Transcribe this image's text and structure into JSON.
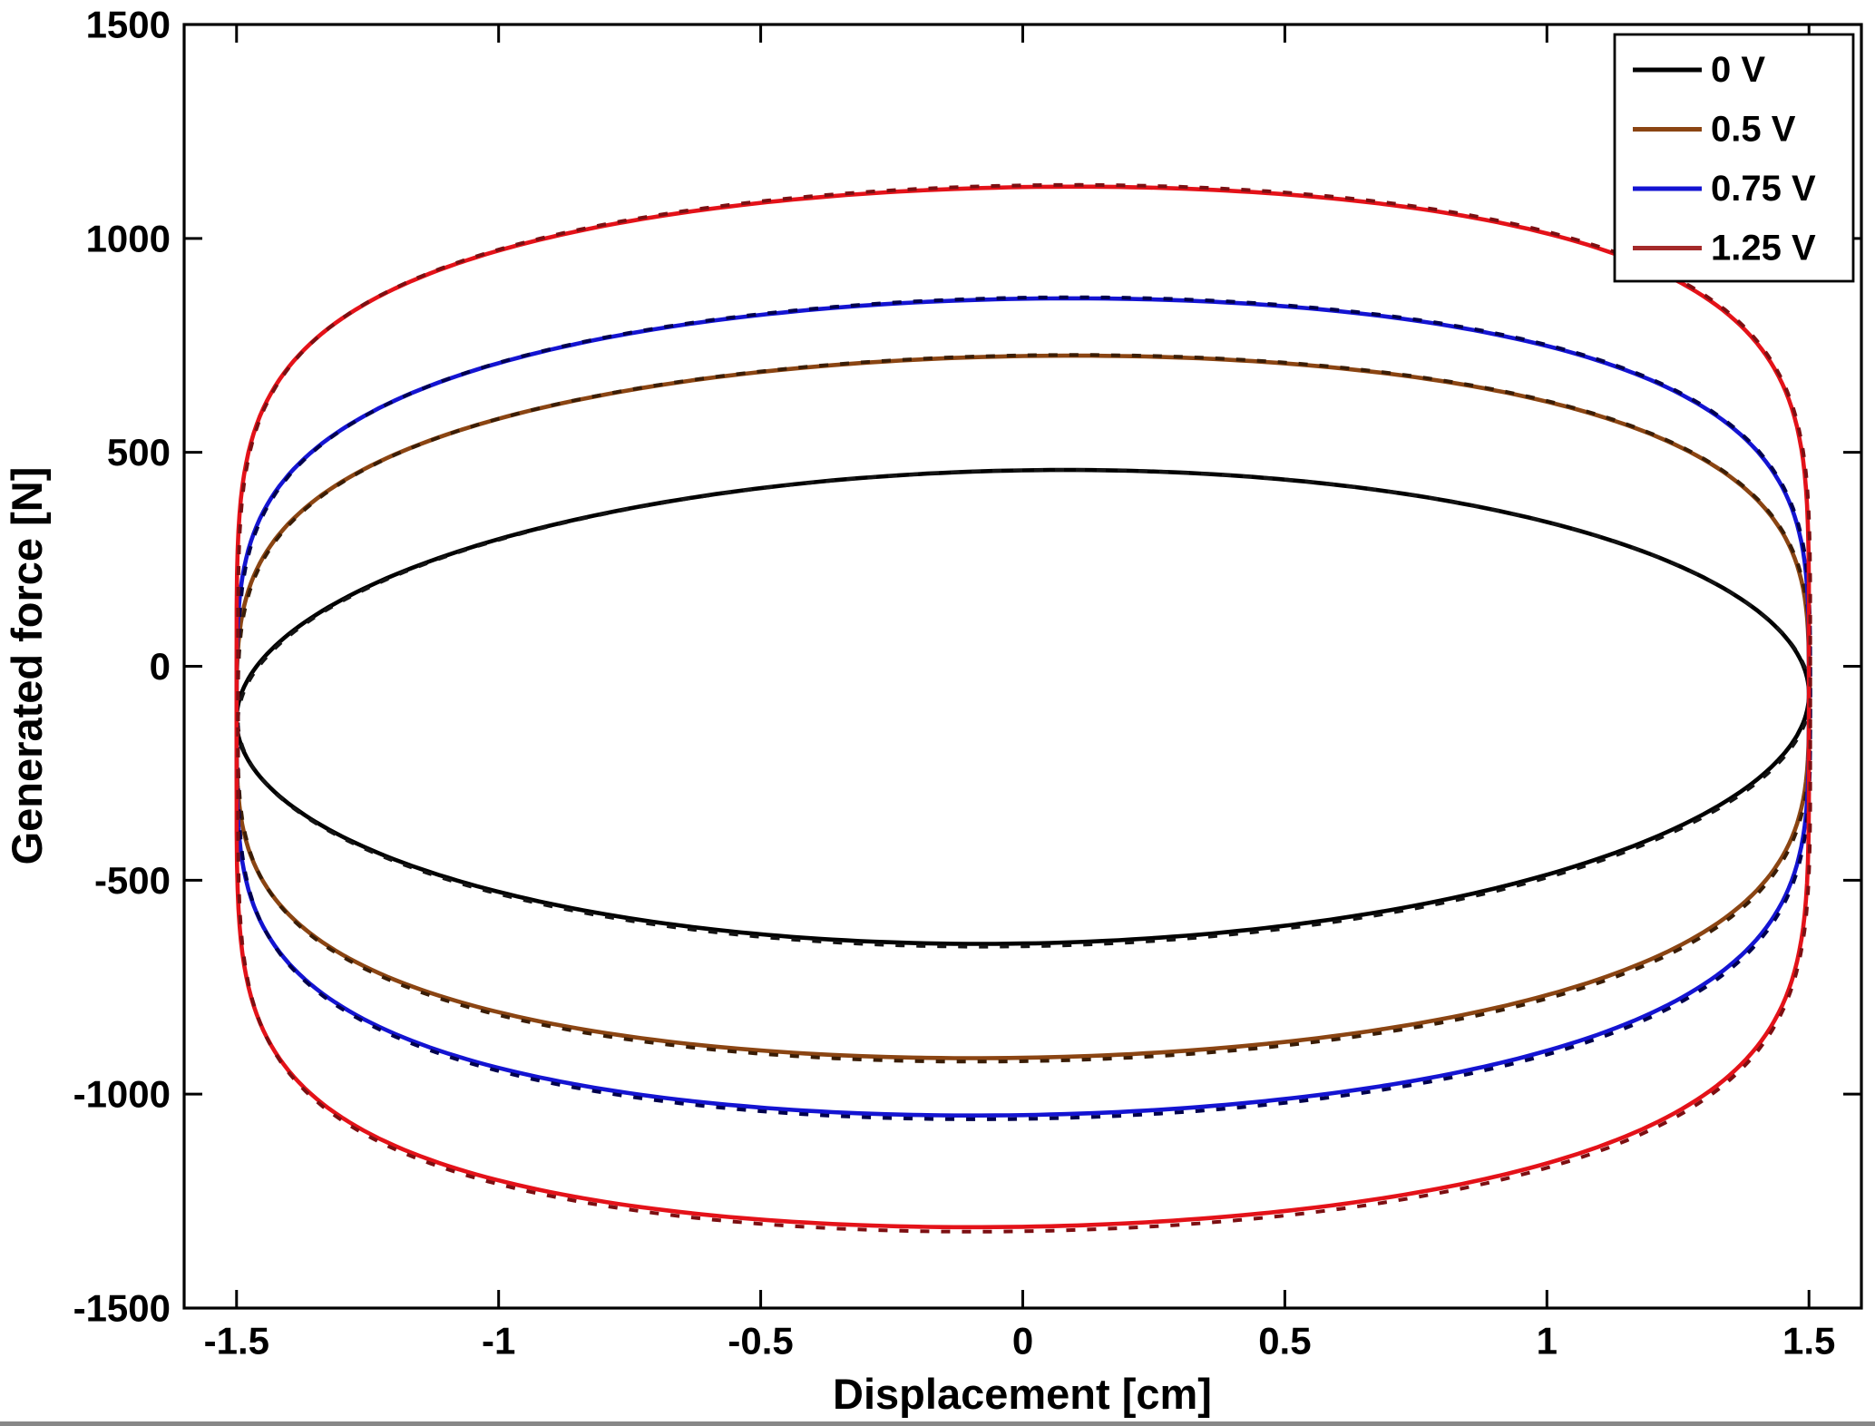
{
  "figure": {
    "background_color": "#ffffff",
    "axis_color": "#000000"
  },
  "chart_data": {
    "type": "line",
    "title": "",
    "subtitle": "",
    "xlabel": "Displacement [cm]",
    "ylabel": "Generated force [N]",
    "xlim": [
      -1.6,
      1.6
    ],
    "ylim": [
      -1500,
      1500
    ],
    "xticks": [
      -1.5,
      -1,
      -0.5,
      0,
      0.5,
      1,
      1.5
    ],
    "xtick_labels": [
      "-1.5",
      "-1",
      "-0.5",
      "0",
      "0.5",
      "1",
      "1.5"
    ],
    "yticks": [
      -1500,
      -1000,
      -500,
      0,
      500,
      1000,
      1500
    ],
    "ytick_labels": [
      "-1500",
      "-1000",
      "-500",
      "0",
      "500",
      "1000",
      "1500"
    ],
    "grid": false,
    "legend_position": "top-right",
    "curve_style": "closed hysteresis loops (force vs displacement), each drawn as a bright solid line overlaid by a darker dashed line",
    "series": [
      {
        "name": "0 V",
        "color": "#000000",
        "overlay_color": "#141414",
        "legend_color": "#000000",
        "loop_model": {
          "x_amplitude_cm": 1.5,
          "force_offset_N": -95,
          "force_amplitude_N": 553,
          "shape_exponent": 1.0,
          "stiffness_N_per_cm": 20
        },
        "points_top_branch": [
          [
            -1.5,
            -125
          ],
          [
            -1,
            297
          ],
          [
            -0.5,
            416
          ],
          [
            0,
            458
          ],
          [
            0.5,
            436
          ],
          [
            1,
            337
          ],
          [
            1.5,
            -65
          ]
        ],
        "points_bottom_branch": [
          [
            -1.5,
            -125
          ],
          [
            -1,
            -527
          ],
          [
            -0.5,
            -626
          ],
          [
            0,
            -648
          ],
          [
            0.5,
            -606
          ],
          [
            1,
            -487
          ],
          [
            1.5,
            -65
          ]
        ]
      },
      {
        "name": "0.5 V",
        "color": "#8b4513",
        "overlay_color": "#3a1d06",
        "legend_color": "#8b4513",
        "loop_model": {
          "x_amplitude_cm": 1.5,
          "force_offset_N": -95,
          "force_amplitude_N": 820,
          "shape_exponent": 0.57,
          "stiffness_N_per_cm": 20
        },
        "points_top_branch": [
          [
            -1.5,
            -125
          ],
          [
            -1,
            579
          ],
          [
            -0.5,
            688
          ],
          [
            0,
            725
          ],
          [
            0.5,
            708
          ],
          [
            1,
            619
          ],
          [
            1.5,
            -65
          ]
        ],
        "points_bottom_branch": [
          [
            -1.5,
            -125
          ],
          [
            -1,
            -809
          ],
          [
            -0.5,
            -898
          ],
          [
            0,
            -915
          ],
          [
            0.5,
            -878
          ],
          [
            1,
            -769
          ],
          [
            1.5,
            -65
          ]
        ]
      },
      {
        "name": "0.75 V",
        "color": "#1414d2",
        "overlay_color": "#00004d",
        "legend_color": "#1414d2",
        "loop_model": {
          "x_amplitude_cm": 1.5,
          "force_offset_N": -95,
          "force_amplitude_N": 954,
          "shape_exponent": 0.5,
          "stiffness_N_per_cm": 20
        },
        "points_top_branch": [
          [
            -1.5,
            -125
          ],
          [
            -1,
            708
          ],
          [
            -0.5,
            821
          ],
          [
            0,
            859
          ],
          [
            0.5,
            841
          ],
          [
            1,
            748
          ],
          [
            1.5,
            -65
          ]
        ],
        "points_bottom_branch": [
          [
            -1.5,
            -125
          ],
          [
            -1,
            -938
          ],
          [
            -0.5,
            -1031
          ],
          [
            0,
            -1049
          ],
          [
            0.5,
            -1011
          ],
          [
            1,
            -898
          ],
          [
            1.5,
            -65
          ]
        ]
      },
      {
        "name": "1.25 V",
        "color": "#e41219",
        "overlay_color": "#7c0f12",
        "legend_color": "#a42a2a",
        "loop_model": {
          "x_amplitude_cm": 1.5,
          "force_offset_N": -95,
          "force_amplitude_N": 1215,
          "shape_exponent": 0.38,
          "stiffness_N_per_cm": 20
        },
        "points_top_branch": [
          [
            -1.5,
            -125
          ],
          [
            -1,
            971
          ],
          [
            -0.5,
            1083
          ],
          [
            0,
            1120
          ],
          [
            0.5,
            1103
          ],
          [
            1,
            1011
          ],
          [
            1.5,
            -65
          ]
        ],
        "points_bottom_branch": [
          [
            -1.5,
            -125
          ],
          [
            -1,
            -1201
          ],
          [
            -0.5,
            -1293
          ],
          [
            0,
            -1310
          ],
          [
            0.5,
            -1273
          ],
          [
            1,
            -1161
          ],
          [
            1.5,
            -65
          ]
        ]
      }
    ]
  },
  "legend": {
    "items": [
      "0 V",
      "0.5 V",
      "0.75 V",
      "1.25 V"
    ]
  }
}
